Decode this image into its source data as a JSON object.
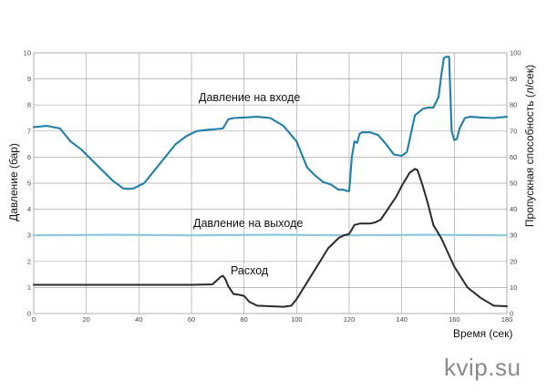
{
  "chart_data": {
    "type": "line",
    "xlabel": "Время (сек)",
    "ylabel_left": "Давление (бар)",
    "ylabel_right": "Пропускная способность (л/сек)",
    "xlim": [
      0,
      180
    ],
    "ylim_left": [
      0,
      10
    ],
    "ylim_right": [
      0,
      100
    ],
    "x_ticks": [
      "0",
      "20",
      "40",
      "60",
      "80",
      "100",
      "120",
      "140",
      "160",
      "180"
    ],
    "y_ticks_left": [
      "0",
      "1",
      "2",
      "3",
      "4",
      "5",
      "6",
      "7",
      "8",
      "9",
      "10"
    ],
    "y_ticks_right": [
      "0",
      "10",
      "20",
      "30",
      "40",
      "50",
      "60",
      "70",
      "80",
      "90",
      "100"
    ],
    "grid": true,
    "annotations": [
      "Давление на входе",
      "Давление на выходе",
      "Расход"
    ],
    "series": [
      {
        "name": "Давление на входе",
        "axis": "left",
        "color": "#1f7fa8",
        "x": [
          0,
          5,
          10,
          14,
          18,
          22,
          26,
          30,
          34,
          36,
          38,
          42,
          46,
          50,
          54,
          58,
          62,
          66,
          70,
          72,
          74,
          76,
          80,
          85,
          90,
          95,
          100,
          102,
          104,
          107,
          110,
          113,
          116,
          118,
          119,
          120,
          121,
          122,
          123,
          124,
          125,
          128,
          131,
          134,
          137,
          140,
          142,
          145,
          148,
          150,
          152,
          154,
          155,
          156,
          157,
          158,
          159,
          160,
          161,
          162,
          164,
          166,
          170,
          175,
          180
        ],
        "y": [
          7.15,
          7.2,
          7.1,
          6.6,
          6.3,
          5.9,
          5.5,
          5.1,
          4.8,
          4.78,
          4.8,
          5.0,
          5.5,
          6.0,
          6.5,
          6.8,
          7.0,
          7.05,
          7.08,
          7.1,
          7.45,
          7.5,
          7.52,
          7.55,
          7.5,
          7.2,
          6.6,
          6.1,
          5.6,
          5.3,
          5.05,
          4.95,
          4.75,
          4.75,
          4.7,
          4.7,
          6.0,
          6.6,
          6.55,
          6.9,
          6.95,
          6.95,
          6.85,
          6.5,
          6.1,
          6.05,
          6.2,
          7.6,
          7.85,
          7.9,
          7.9,
          8.3,
          9.1,
          9.8,
          9.85,
          9.85,
          7.0,
          6.65,
          6.7,
          7.1,
          7.5,
          7.55,
          7.52,
          7.5,
          7.55
        ]
      },
      {
        "name": "Давление на выходе",
        "axis": "left",
        "color": "#8fc8de",
        "x": [
          0,
          30,
          60,
          90,
          120,
          150,
          180
        ],
        "y": [
          3.0,
          3.02,
          3.0,
          3.02,
          3.0,
          3.02,
          3.0
        ]
      },
      {
        "name": "Расход",
        "axis": "left",
        "color": "#2a2a2a",
        "x": [
          0,
          20,
          40,
          60,
          68,
          70,
          71,
          72,
          73,
          74,
          75,
          76,
          78,
          80,
          82,
          85,
          90,
          95,
          98,
          100,
          104,
          108,
          112,
          116,
          118,
          120,
          122,
          124,
          126,
          128,
          130,
          132,
          134,
          136,
          138,
          140,
          143,
          145,
          146,
          148,
          150,
          152,
          155,
          160,
          165,
          170,
          175,
          180
        ],
        "y": [
          1.1,
          1.1,
          1.1,
          1.1,
          1.12,
          1.3,
          1.4,
          1.45,
          1.3,
          1.05,
          0.9,
          0.75,
          0.72,
          0.68,
          0.45,
          0.3,
          0.28,
          0.26,
          0.3,
          0.55,
          1.2,
          1.85,
          2.5,
          2.9,
          3.0,
          3.05,
          3.4,
          3.45,
          3.45,
          3.45,
          3.5,
          3.6,
          3.9,
          4.2,
          4.5,
          4.9,
          5.4,
          5.55,
          5.5,
          4.9,
          4.2,
          3.4,
          2.9,
          1.8,
          1.0,
          0.6,
          0.3,
          0.28
        ]
      }
    ]
  },
  "watermark": "kvip.su"
}
